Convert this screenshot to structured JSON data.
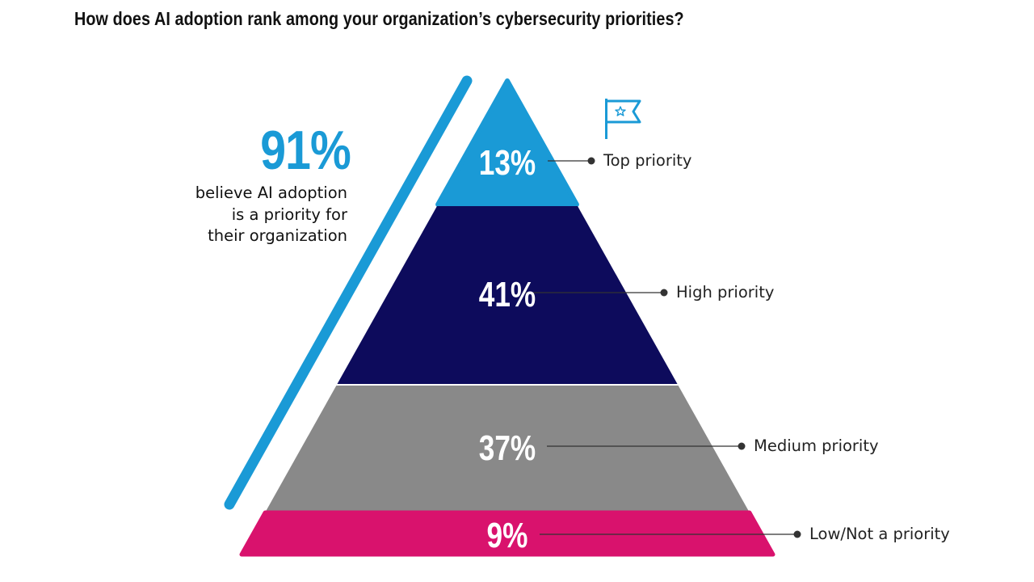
{
  "title": "How does AI adoption rank among your organization’s cybersecurity priorities?",
  "callout": {
    "value": "91%",
    "lines": [
      "believe AI adoption",
      "is a priority for",
      "their organization"
    ]
  },
  "icons": {
    "flag": "flag-with-star-icon"
  },
  "colors": {
    "top": "#1a9ad6",
    "high": "#0d0b5c",
    "medium": "#898989",
    "low": "#d9126d",
    "slash": "#1a9ad6",
    "leader": "#333333"
  },
  "chart_data": {
    "type": "pyramid",
    "categories": [
      "Top priority",
      "High priority",
      "Medium priority",
      "Low/Not a priority"
    ],
    "values": [
      13,
      41,
      37,
      9
    ],
    "value_labels": [
      "13%",
      "41%",
      "37%",
      "9%"
    ]
  }
}
